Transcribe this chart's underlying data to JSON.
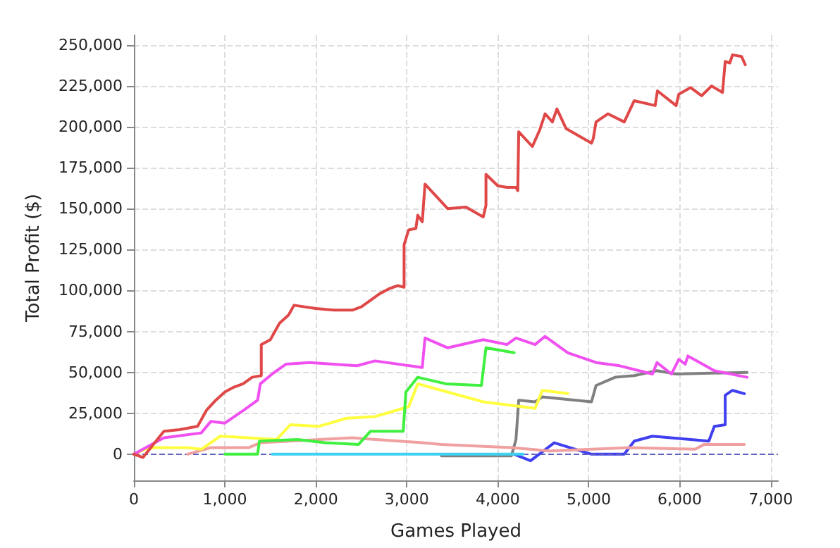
{
  "chart_data": {
    "type": "line",
    "xlabel": "Games Played",
    "ylabel": "Total Profit ($)",
    "xlim": [
      0,
      7080
    ],
    "xticks": [
      0,
      {
        "value": 1000,
        "label": "1,000"
      },
      {
        "value": 2000,
        "label": "2,000"
      },
      {
        "value": 3000,
        "label": "3,000"
      },
      {
        "value": 4000,
        "label": "4,000"
      },
      {
        "value": 5000,
        "label": "5,000"
      },
      {
        "value": 6000,
        "label": "6,000"
      },
      {
        "value": 7000,
        "label": "7,000"
      }
    ],
    "ylim": [
      -16000,
      256000
    ],
    "yticks": [
      0,
      {
        "value": 25000,
        "label": "25,000"
      },
      {
        "value": 50000,
        "label": "50,000"
      },
      {
        "value": 75000,
        "label": "75,000"
      },
      {
        "value": 100000,
        "label": "100,000"
      },
      {
        "value": 125000,
        "label": "125,000"
      },
      {
        "value": 150000,
        "label": "150,000"
      },
      {
        "value": 175000,
        "label": "175,000"
      },
      {
        "value": 200000,
        "label": "200,000"
      },
      {
        "value": 225000,
        "label": "225,000"
      },
      {
        "value": 250000,
        "label": "250,000"
      }
    ],
    "grid": true,
    "marker": "none",
    "line_style": "solid",
    "ref_lines": [
      {
        "axis": "y",
        "value": 0,
        "label": null,
        "color": "#6060c0",
        "line_style": "dashed"
      }
    ],
    "series": [
      {
        "color": "#e04848",
        "x": [
          0,
          100,
          200,
          330,
          500,
          700,
          800,
          900,
          1000,
          1100,
          1200,
          1300,
          1400,
          1400,
          1500,
          1600,
          1700,
          1760,
          2000,
          2200,
          2400,
          2500,
          2700,
          2800,
          2900,
          2970,
          2970,
          3020,
          3100,
          3120,
          3170,
          3200,
          3450,
          3650,
          3840,
          3870,
          3870,
          4000,
          4100,
          4200,
          4220,
          4230,
          4380,
          4460,
          4520,
          4600,
          4650,
          4750,
          5030,
          5050,
          5080,
          5210,
          5390,
          5500,
          5730,
          5755,
          5960,
          5990,
          6120,
          6240,
          6350,
          6470,
          6500,
          6550,
          6580,
          6680,
          6720
        ],
        "values": [
          0,
          -2000,
          5000,
          14000,
          15000,
          17000,
          27000,
          33000,
          38000,
          41000,
          43000,
          47000,
          48000,
          67000,
          70000,
          80000,
          85000,
          91000,
          89000,
          88000,
          88000,
          90000,
          98000,
          101000,
          103000,
          102000,
          128000,
          137000,
          138000,
          146000,
          142000,
          165000,
          150000,
          151000,
          145000,
          152000,
          171000,
          164000,
          163000,
          163000,
          161000,
          197000,
          188000,
          198000,
          208000,
          203000,
          211000,
          199000,
          190000,
          193000,
          203000,
          208000,
          203000,
          216000,
          213000,
          222000,
          213000,
          220000,
          224000,
          219000,
          225000,
          221000,
          240000,
          239000,
          244000,
          243000,
          238000
        ]
      },
      {
        "color": "#f050f0",
        "x": [
          0,
          330,
          740,
          845,
          1000,
          1210,
          1360,
          1390,
          1520,
          1670,
          1930,
          2450,
          2650,
          3170,
          3200,
          3450,
          3840,
          4100,
          4200,
          4410,
          4520,
          4770,
          5080,
          5340,
          5700,
          5750,
          5910,
          5990,
          6060,
          6090,
          6380,
          6740
        ],
        "values": [
          0,
          10000,
          13000,
          20000,
          19000,
          27000,
          33000,
          43000,
          49000,
          55000,
          56000,
          54000,
          57000,
          53000,
          71000,
          65000,
          70000,
          67000,
          71000,
          67000,
          72000,
          62000,
          56000,
          54000,
          49000,
          56000,
          49000,
          58000,
          55000,
          60000,
          51000,
          47000
        ]
      },
      {
        "color": "#40f040",
        "x": [
          1000,
          1360,
          1380,
          1800,
          2100,
          2470,
          2600,
          2960,
          2990,
          3120,
          3430,
          3820,
          3870,
          4180
        ],
        "values": [
          0,
          0,
          8000,
          9000,
          7000,
          6000,
          14000,
          14000,
          38000,
          47000,
          43000,
          42000,
          65000,
          62000
        ]
      },
      {
        "color": "#ffff40",
        "x": [
          0,
          120,
          225,
          590,
          740,
          950,
          1260,
          1570,
          1720,
          2030,
          2340,
          2650,
          2960,
          3020,
          3120,
          3840,
          4410,
          4490,
          4770
        ],
        "values": [
          0,
          3000,
          4000,
          4000,
          3000,
          11000,
          10000,
          9000,
          18000,
          17000,
          22000,
          23000,
          28000,
          29000,
          43000,
          32000,
          28000,
          39000,
          37000
        ]
      },
      {
        "color": "#f0a0a0",
        "x": [
          590,
          845,
          1260,
          1390,
          2400,
          3170,
          3380,
          4150,
          4570,
          5450,
          6170,
          6270,
          6710
        ],
        "values": [
          0,
          4000,
          4000,
          7000,
          10000,
          7000,
          6000,
          4000,
          2000,
          4000,
          3000,
          6000,
          6000
        ]
      },
      {
        "color": "#40d0f0",
        "x": [
          1520,
          4280
        ],
        "values": [
          0,
          0
        ]
      },
      {
        "color": "#808080",
        "x": [
          3380,
          4150,
          4200,
          4230,
          4410,
          4490,
          5030,
          5080,
          5290,
          5500,
          5750,
          5960,
          6740
        ],
        "values": [
          -1000,
          -1000,
          9000,
          33000,
          32000,
          35000,
          32000,
          42000,
          47000,
          48000,
          51000,
          49000,
          50000
        ]
      },
      {
        "color": "#4040f0",
        "x": [
          4180,
          4360,
          4620,
          5030,
          5390,
          5500,
          5700,
          6320,
          6380,
          6500,
          6500,
          6580,
          6710
        ],
        "values": [
          0,
          -4000,
          7000,
          0,
          0,
          8000,
          11000,
          8000,
          17000,
          18000,
          36000,
          39000,
          37000
        ]
      }
    ]
  }
}
